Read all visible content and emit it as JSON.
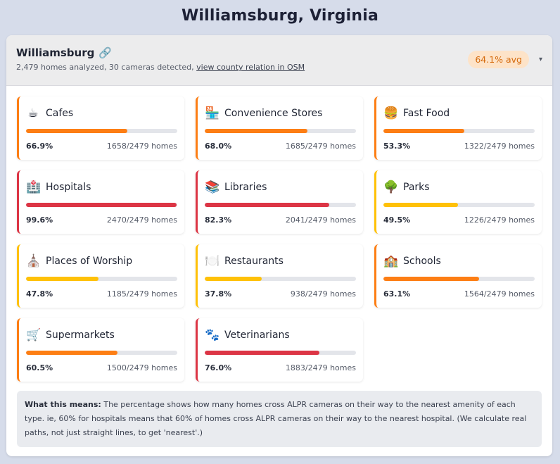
{
  "page_title": "Williamsburg, Virginia",
  "header": {
    "city_name": "Williamsburg",
    "link_icon": "🔗",
    "summary_prefix": "2,479 homes analyzed, 30 cameras detected,",
    "osm_link_label": "view county relation in OSM",
    "avg_label": "64.1% avg",
    "toggle_glyph": "▾"
  },
  "colors": {
    "high": "#dc3545",
    "mid": "#fd7e14",
    "low": "#ffc107",
    "badge_bg": "#fde3c8",
    "badge_text": "#d56a0c"
  },
  "amenities": [
    {
      "name": "Cafes",
      "icon": "☕",
      "icon_name": "coffee-icon",
      "pct": 66.9,
      "pct_label": "66.9%",
      "homes_label": "1658/2479 homes",
      "level": "mid"
    },
    {
      "name": "Convenience Stores",
      "icon": "🏪",
      "icon_name": "store-icon",
      "pct": 68.0,
      "pct_label": "68.0%",
      "homes_label": "1685/2479 homes",
      "level": "mid"
    },
    {
      "name": "Fast Food",
      "icon": "🍔",
      "icon_name": "burger-icon",
      "pct": 53.3,
      "pct_label": "53.3%",
      "homes_label": "1322/2479 homes",
      "level": "mid"
    },
    {
      "name": "Hospitals",
      "icon": "🏥",
      "icon_name": "hospital-icon",
      "pct": 99.6,
      "pct_label": "99.6%",
      "homes_label": "2470/2479 homes",
      "level": "high"
    },
    {
      "name": "Libraries",
      "icon": "📚",
      "icon_name": "books-icon",
      "pct": 82.3,
      "pct_label": "82.3%",
      "homes_label": "2041/2479 homes",
      "level": "high"
    },
    {
      "name": "Parks",
      "icon": "🌳",
      "icon_name": "tree-icon",
      "pct": 49.5,
      "pct_label": "49.5%",
      "homes_label": "1226/2479 homes",
      "level": "low"
    },
    {
      "name": "Places of Worship",
      "icon": "⛪",
      "icon_name": "church-icon",
      "pct": 47.8,
      "pct_label": "47.8%",
      "homes_label": "1185/2479 homes",
      "level": "low"
    },
    {
      "name": "Restaurants",
      "icon": "🍽️",
      "icon_name": "plate-icon",
      "pct": 37.8,
      "pct_label": "37.8%",
      "homes_label": "938/2479 homes",
      "level": "low"
    },
    {
      "name": "Schools",
      "icon": "🏫",
      "icon_name": "school-icon",
      "pct": 63.1,
      "pct_label": "63.1%",
      "homes_label": "1564/2479 homes",
      "level": "mid"
    },
    {
      "name": "Supermarkets",
      "icon": "🛒",
      "icon_name": "cart-icon",
      "pct": 60.5,
      "pct_label": "60.5%",
      "homes_label": "1500/2479 homes",
      "level": "mid"
    },
    {
      "name": "Veterinarians",
      "icon": "🐾",
      "icon_name": "paw-icon",
      "pct": 76.0,
      "pct_label": "76.0%",
      "homes_label": "1883/2479 homes",
      "level": "high"
    }
  ],
  "info": {
    "lead": "What this means:",
    "body": "The percentage shows how many homes cross ALPR cameras on their way to the nearest amenity of each type. ie, 60% for hospitals means that 60% of homes cross ALPR cameras on their way to the nearest hospital. (We calculate real paths, not just straight lines, to get 'nearest'.)"
  }
}
